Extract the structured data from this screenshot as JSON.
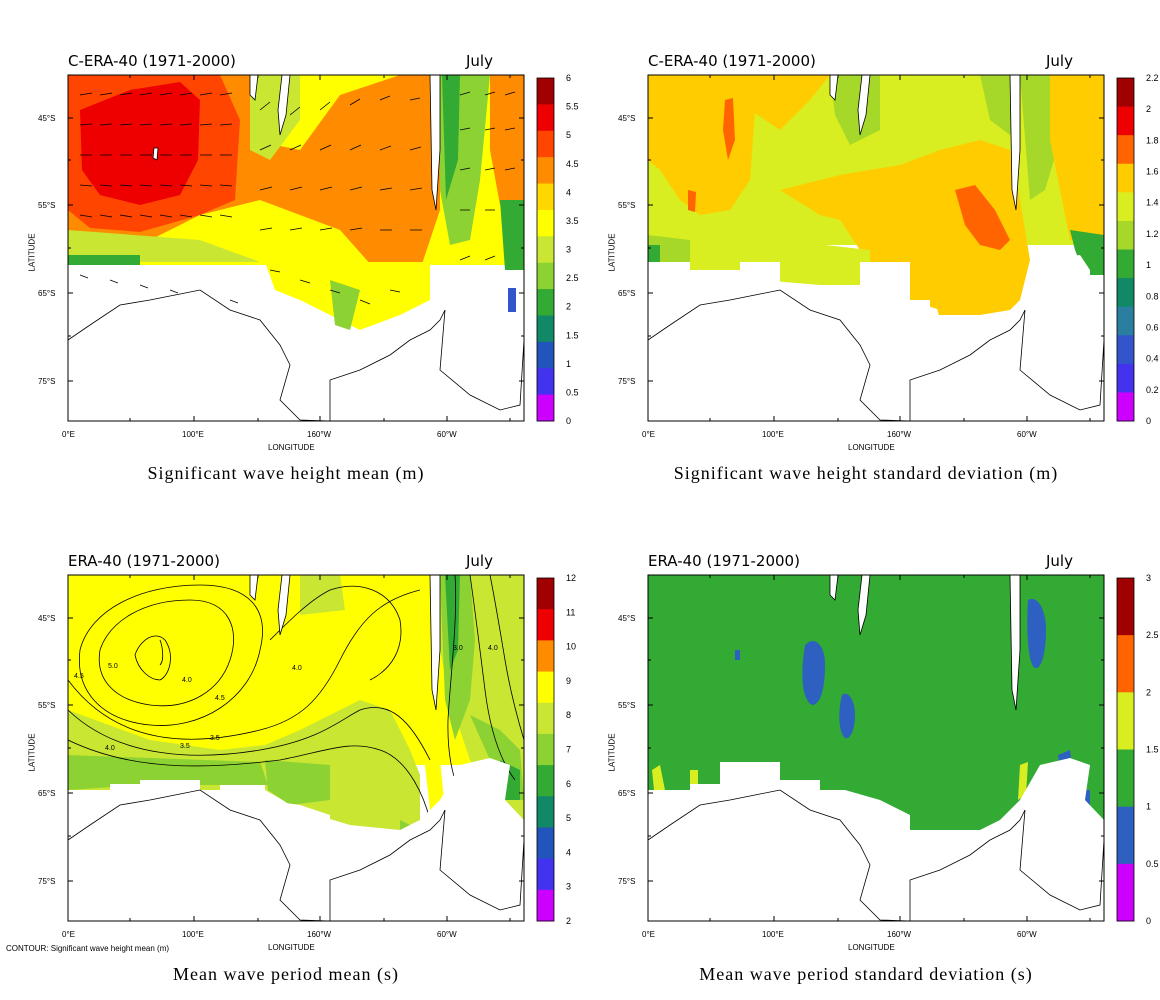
{
  "panels": [
    {
      "id": "p1",
      "header": "C-ERA-40 (1971-2000)",
      "month": "July",
      "caption": "Significant wave height mean (m)",
      "colorbar_labels": [
        "6",
        "5.5",
        "5",
        "4.5",
        "4",
        "3.5",
        "3",
        "2.5",
        "2",
        "1.5",
        "1",
        "0.5",
        "0"
      ],
      "colorbar_colors": [
        "#a00000",
        "#ee0000",
        "#ff4500",
        "#ff8c00",
        "#ffd700",
        "#ffff00",
        "#c8e632",
        "#8cd232",
        "#33aa33",
        "#118866",
        "#2255bb",
        "#4433ee",
        "#cc00ff"
      ],
      "y_ticks": [
        "45°S",
        "55°S",
        "65°S",
        "75°S"
      ],
      "x_ticks": [
        "0°E",
        "100°E",
        "160°W",
        "60°W"
      ],
      "ylabel": "LATITUDE",
      "xlabel": "LONGITUDE"
    },
    {
      "id": "p2",
      "header": "C-ERA-40 (1971-2000)",
      "month": "July",
      "caption": "Significant wave height standard deviation (m)",
      "colorbar_labels": [
        "2.2",
        "2",
        "1.8",
        "1.6",
        "1.4",
        "1.2",
        "1",
        "0.8",
        "0.6",
        "0.4",
        "0.2",
        "0"
      ],
      "colorbar_colors": [
        "#a00000",
        "#ee0000",
        "#ff6400",
        "#ffcc00",
        "#d8ee20",
        "#a6d82a",
        "#33aa33",
        "#118866",
        "#2a7fa0",
        "#3355cc",
        "#4433ee",
        "#cc00ff"
      ],
      "y_ticks": [
        "45°S",
        "55°S",
        "65°S",
        "75°S"
      ],
      "x_ticks": [
        "0°E",
        "100°E",
        "160°W",
        "60°W"
      ],
      "ylabel": "LATITUDE",
      "xlabel": "LONGITUDE"
    },
    {
      "id": "p3",
      "header": "ERA-40 (1971-2000)",
      "month": "July",
      "caption": "Mean wave period mean (s)",
      "colorbar_labels": [
        "12",
        "11",
        "10",
        "9",
        "8",
        "7",
        "6",
        "5",
        "4",
        "3",
        "2"
      ],
      "colorbar_colors": [
        "#a00000",
        "#ee0000",
        "#ff8c00",
        "#ffff00",
        "#c8e632",
        "#8cd232",
        "#33aa33",
        "#118866",
        "#2255bb",
        "#4433ee",
        "#cc00ff"
      ],
      "y_ticks": [
        "45°S",
        "55°S",
        "65°S",
        "75°S"
      ],
      "x_ticks": [
        "0°E",
        "100°E",
        "160°W",
        "60°W"
      ],
      "ylabel": "LATITUDE",
      "xlabel": "LONGITUDE",
      "contour_note": "CONTOUR: Significant wave height mean (m)",
      "contour_labels": [
        "4.5",
        "5.0",
        "4.0",
        "4.5",
        "3.5",
        "4.0",
        "4.0",
        "3.5",
        "3.0",
        "4.0"
      ]
    },
    {
      "id": "p4",
      "header": "ERA-40 (1971-2000)",
      "month": "July",
      "caption": "Mean wave period standard deviation (s)",
      "colorbar_labels": [
        "3",
        "2.5",
        "2",
        "1.5",
        "1",
        "0.5",
        "0"
      ],
      "colorbar_colors": [
        "#a00000",
        "#ff6400",
        "#d8ee20",
        "#33aa33",
        "#2d60c0",
        "#cc00ff"
      ],
      "y_ticks": [
        "45°S",
        "55°S",
        "65°S",
        "75°S"
      ],
      "x_ticks": [
        "0°E",
        "100°E",
        "160°W",
        "60°W"
      ],
      "ylabel": "LATITUDE",
      "xlabel": "LONGITUDE"
    }
  ]
}
